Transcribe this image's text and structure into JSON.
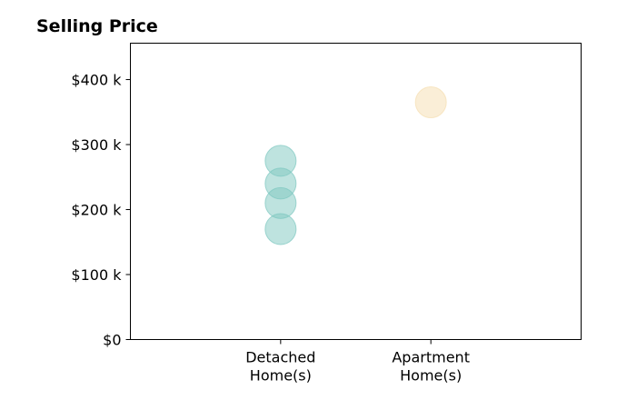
{
  "chart_data": {
    "type": "scatter",
    "title": "Selling Price",
    "xlabel": "",
    "ylabel": "",
    "ylim": [
      0,
      456
    ],
    "categories": [
      "Detached\nHome(s)",
      "Apartment\nHome(s)"
    ],
    "yticks": [
      0,
      100,
      200,
      300,
      400
    ],
    "ytick_labels": [
      "$0",
      "$100 k",
      "$200 k",
      "$300 k",
      "$400 k"
    ],
    "grid": false,
    "legend": "none",
    "series": [
      {
        "category": "Detached\nHome(s)",
        "color": "#7ec8c0",
        "values": [
          170,
          210,
          240,
          275
        ]
      },
      {
        "category": "Apartment\nHome(s)",
        "color": "#f5deb0",
        "values": [
          365
        ]
      }
    ]
  }
}
